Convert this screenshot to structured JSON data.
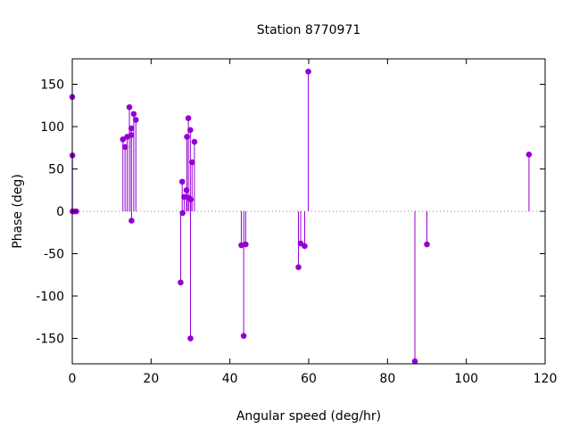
{
  "chart_data": {
    "type": "scatter",
    "title": "Station 8770971",
    "xlabel": "Angular speed (deg/hr)",
    "ylabel": "Phase (deg)",
    "xlim": [
      0,
      120
    ],
    "ylim": [
      -180,
      180
    ],
    "x_ticks": [
      0,
      20,
      40,
      60,
      80,
      100,
      120
    ],
    "y_ticks": [
      -150,
      -100,
      -50,
      0,
      50,
      100,
      150
    ],
    "grid": false,
    "zero_line": true,
    "style": "impulses-with-points",
    "color": "#9400d3",
    "points": [
      {
        "x": 0.0,
        "y": 135
      },
      {
        "x": 0.04,
        "y": 66
      },
      {
        "x": 0.08,
        "y": 0
      },
      {
        "x": 0.5,
        "y": 0
      },
      {
        "x": 1.0,
        "y": 0
      },
      {
        "x": 12.85,
        "y": 85
      },
      {
        "x": 13.4,
        "y": 76
      },
      {
        "x": 13.94,
        "y": 88
      },
      {
        "x": 14.5,
        "y": 123
      },
      {
        "x": 14.96,
        "y": 90
      },
      {
        "x": 15.0,
        "y": 98
      },
      {
        "x": 15.04,
        "y": -11
      },
      {
        "x": 15.6,
        "y": 115
      },
      {
        "x": 16.14,
        "y": 108
      },
      {
        "x": 27.5,
        "y": -84
      },
      {
        "x": 27.9,
        "y": 35
      },
      {
        "x": 28.0,
        "y": -2
      },
      {
        "x": 28.4,
        "y": 17
      },
      {
        "x": 28.98,
        "y": 25
      },
      {
        "x": 29.1,
        "y": 88
      },
      {
        "x": 29.46,
        "y": 110
      },
      {
        "x": 29.53,
        "y": 16
      },
      {
        "x": 29.96,
        "y": 96
      },
      {
        "x": 30.0,
        "y": -150
      },
      {
        "x": 30.08,
        "y": 14
      },
      {
        "x": 30.4,
        "y": 58
      },
      {
        "x": 31.0,
        "y": 82
      },
      {
        "x": 42.9,
        "y": -40
      },
      {
        "x": 43.5,
        "y": -147
      },
      {
        "x": 44.0,
        "y": -39
      },
      {
        "x": 57.4,
        "y": -66
      },
      {
        "x": 57.97,
        "y": -38
      },
      {
        "x": 58.98,
        "y": -41
      },
      {
        "x": 59.9,
        "y": 165
      },
      {
        "x": 86.95,
        "y": -177
      },
      {
        "x": 90.0,
        "y": -39
      },
      {
        "x": 115.9,
        "y": 67
      }
    ]
  }
}
